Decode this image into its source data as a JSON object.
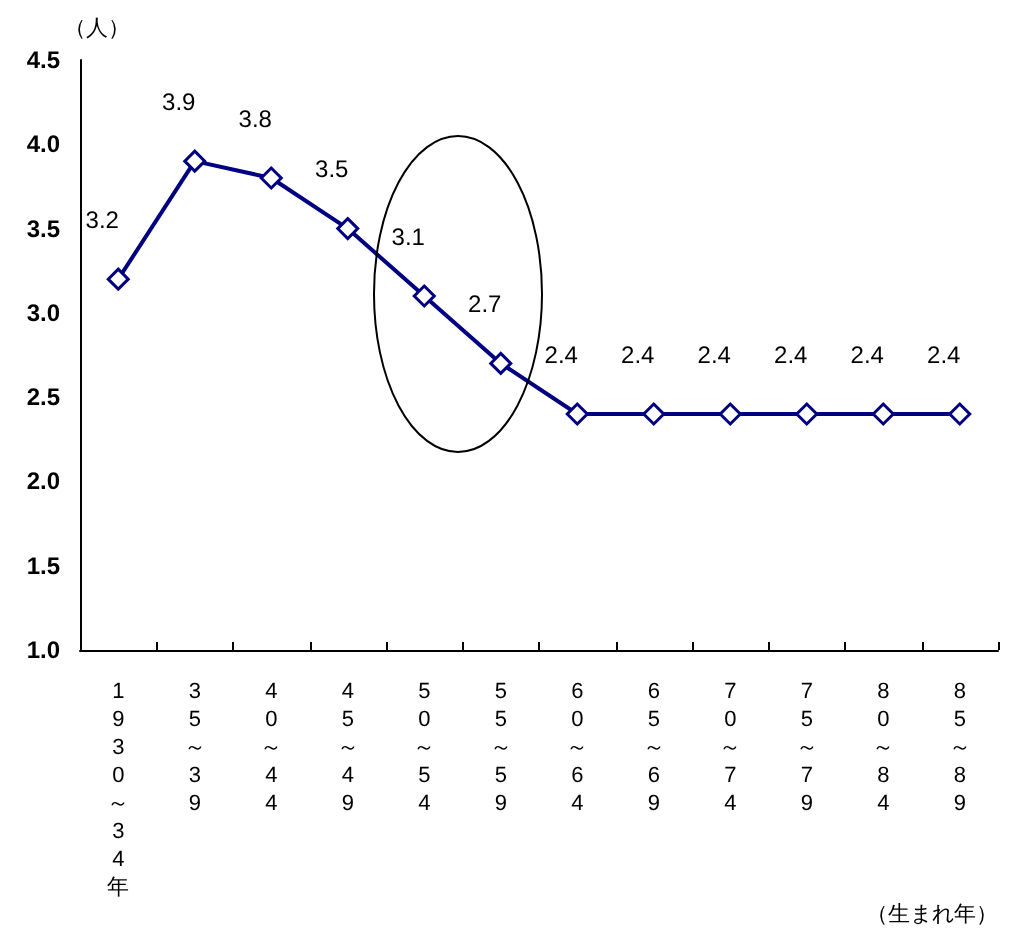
{
  "chart_data": {
    "type": "line",
    "xlabel": "（生まれ年）",
    "ylabel": "（人）",
    "categories": [
      "1930～34年",
      "35～39",
      "40～44",
      "45～49",
      "50～54",
      "55～59",
      "60～64",
      "65～69",
      "70～74",
      "75～79",
      "80～84",
      "85～89"
    ],
    "series": [
      {
        "color": "#000080",
        "values": [
          3.2,
          3.9,
          3.8,
          3.5,
          3.1,
          2.7,
          2.4,
          2.4,
          2.4,
          2.4,
          2.4,
          2.4
        ]
      }
    ],
    "ylim": [
      1.0,
      4.5
    ],
    "yticks": [
      {
        "value": 1.0,
        "label": "1.0"
      },
      {
        "value": 1.5,
        "label": "1.5"
      },
      {
        "value": 2.0,
        "label": "2.0"
      },
      {
        "value": 2.5,
        "label": "2.5"
      },
      {
        "value": 3.0,
        "label": "3.0"
      },
      {
        "value": 3.5,
        "label": "3.5"
      },
      {
        "value": 4.0,
        "label": "4.0"
      },
      {
        "value": 4.5,
        "label": "4.5"
      }
    ],
    "data_labels": true,
    "marker": "diamond",
    "line_style": "solid"
  }
}
